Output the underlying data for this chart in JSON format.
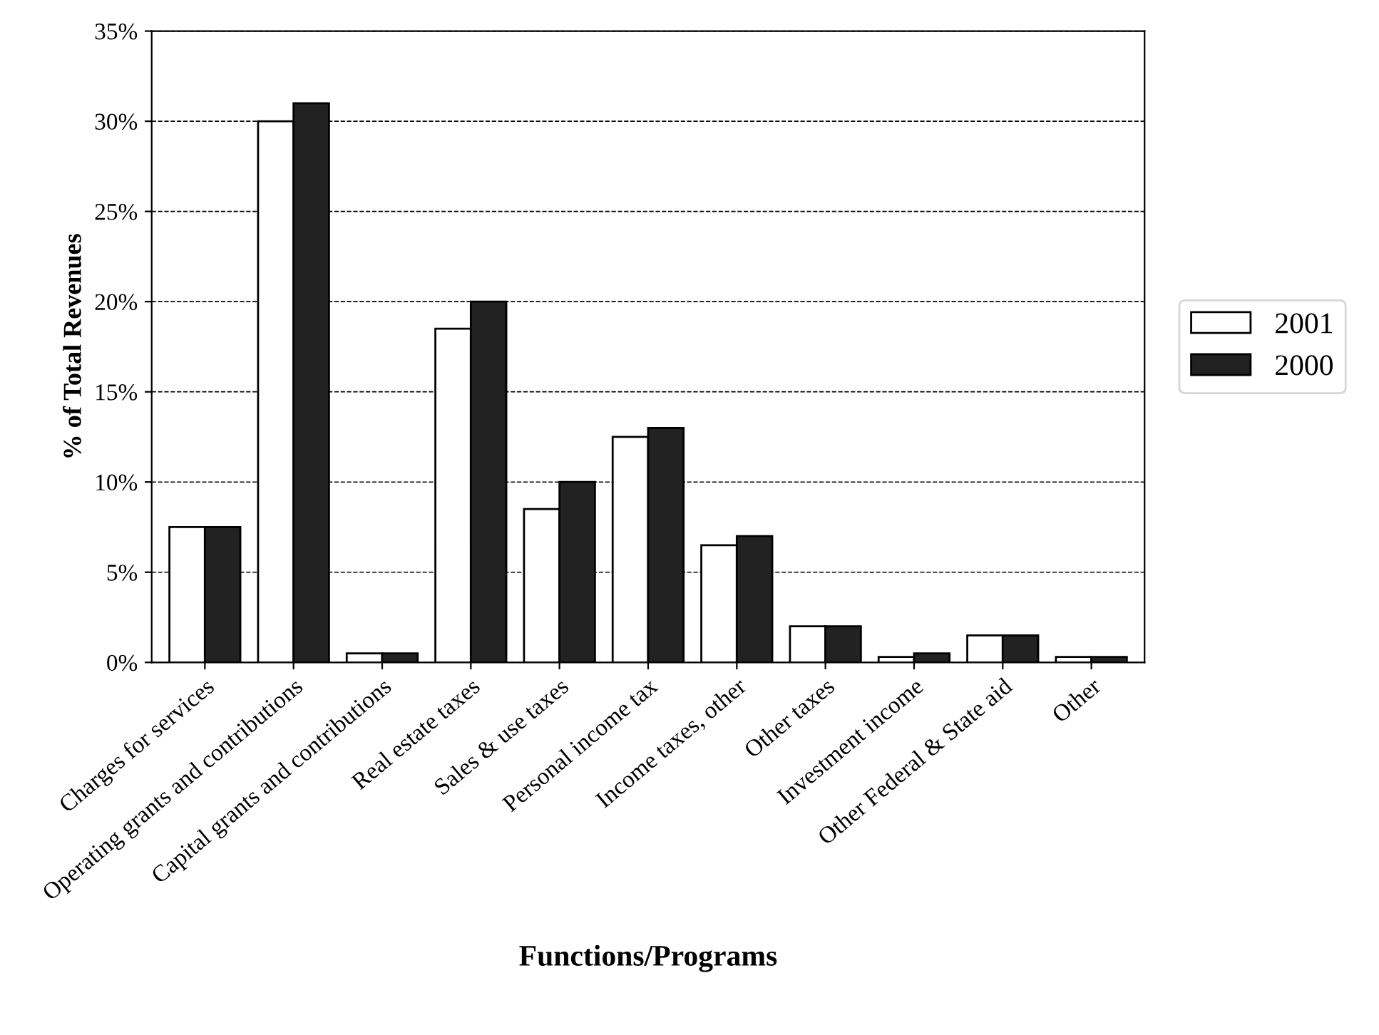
{
  "chart_data": {
    "type": "bar",
    "xlabel": "Functions/Programs",
    "ylabel": "% of Total Revenues",
    "categories": [
      "Charges for services",
      "Operating grants and contributions",
      "Capital grants and contributions",
      "Real estate taxes",
      "Sales & use taxes",
      "Personal income tax",
      "Income taxes, other",
      "Other taxes",
      "Investment income",
      "Other Federal & State aid",
      "Other"
    ],
    "series": [
      {
        "name": "2001",
        "color": "#ffffff",
        "values": [
          7.5,
          30,
          0.5,
          18.5,
          8.5,
          12.5,
          6.5,
          2,
          0.3,
          1.5,
          0.3
        ]
      },
      {
        "name": "2000",
        "color": "#222222",
        "values": [
          7.5,
          31,
          0.5,
          20,
          10,
          13,
          7,
          2,
          0.5,
          1.5,
          0.3
        ]
      }
    ],
    "ylim": [
      0,
      35
    ],
    "yticks": [
      {
        "value": 0,
        "label": "0%"
      },
      {
        "value": 5,
        "label": "5%"
      },
      {
        "value": 10,
        "label": "10%"
      },
      {
        "value": 15,
        "label": "15%"
      },
      {
        "value": 20,
        "label": "20%"
      },
      {
        "value": 25,
        "label": "25%"
      },
      {
        "value": 30,
        "label": "30%"
      },
      {
        "value": 35,
        "label": "35%"
      }
    ],
    "grid": "y",
    "legend": "right"
  }
}
